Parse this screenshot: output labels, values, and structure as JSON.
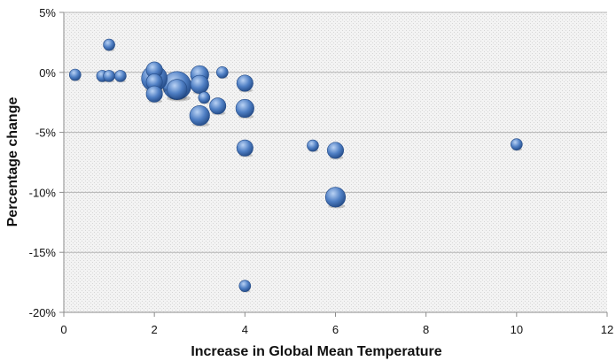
{
  "chart_data": {
    "type": "scatter",
    "title": "",
    "xlabel": "Increase in Global Mean Temperature",
    "ylabel": "Percentage change",
    "xlim": [
      0,
      12
    ],
    "ylim": [
      -20,
      5
    ],
    "x_ticks": [
      "0",
      "2",
      "4",
      "6",
      "8",
      "10",
      "12"
    ],
    "y_ticks": [
      "-20%",
      "-15%",
      "-10%",
      "-5%",
      "0%",
      "5%"
    ],
    "grid": "horizontal",
    "legend": "none",
    "marker_style": "bubble",
    "colors": {
      "bubble_fill": "#4f7fc4",
      "bubble_dark": "#234a86",
      "bubble_light": "#b9d2f4",
      "gridline": "#b5b5b5",
      "plot_background": "#f2f2f2"
    },
    "points": [
      {
        "x": 0.25,
        "y": -0.2,
        "size": 1
      },
      {
        "x": 1.0,
        "y": 2.3,
        "size": 1
      },
      {
        "x": 0.85,
        "y": -0.3,
        "size": 1
      },
      {
        "x": 1.0,
        "y": -0.3,
        "size": 1
      },
      {
        "x": 1.25,
        "y": -0.3,
        "size": 1
      },
      {
        "x": 2.0,
        "y": -0.5,
        "size": 5
      },
      {
        "x": 2.0,
        "y": 0.2,
        "size": 2
      },
      {
        "x": 2.0,
        "y": -0.8,
        "size": 2
      },
      {
        "x": 2.0,
        "y": -1.8,
        "size": 2
      },
      {
        "x": 2.5,
        "y": -1.1,
        "size": 6
      },
      {
        "x": 2.5,
        "y": -1.4,
        "size": 3
      },
      {
        "x": 3.0,
        "y": -0.2,
        "size": 2.5
      },
      {
        "x": 3.0,
        "y": -1.0,
        "size": 2.5
      },
      {
        "x": 3.1,
        "y": -2.1,
        "size": 1
      },
      {
        "x": 3.4,
        "y": -2.8,
        "size": 2
      },
      {
        "x": 3.0,
        "y": -3.6,
        "size": 3
      },
      {
        "x": 3.5,
        "y": 0.0,
        "size": 1
      },
      {
        "x": 4.0,
        "y": -0.9,
        "size": 2
      },
      {
        "x": 4.0,
        "y": -3.0,
        "size": 2.5
      },
      {
        "x": 4.0,
        "y": -6.3,
        "size": 2
      },
      {
        "x": 4.0,
        "y": -17.8,
        "size": 1
      },
      {
        "x": 5.5,
        "y": -6.1,
        "size": 1
      },
      {
        "x": 6.0,
        "y": -6.5,
        "size": 2
      },
      {
        "x": 6.0,
        "y": -10.4,
        "size": 3
      },
      {
        "x": 10.0,
        "y": -6.0,
        "size": 1
      }
    ]
  }
}
